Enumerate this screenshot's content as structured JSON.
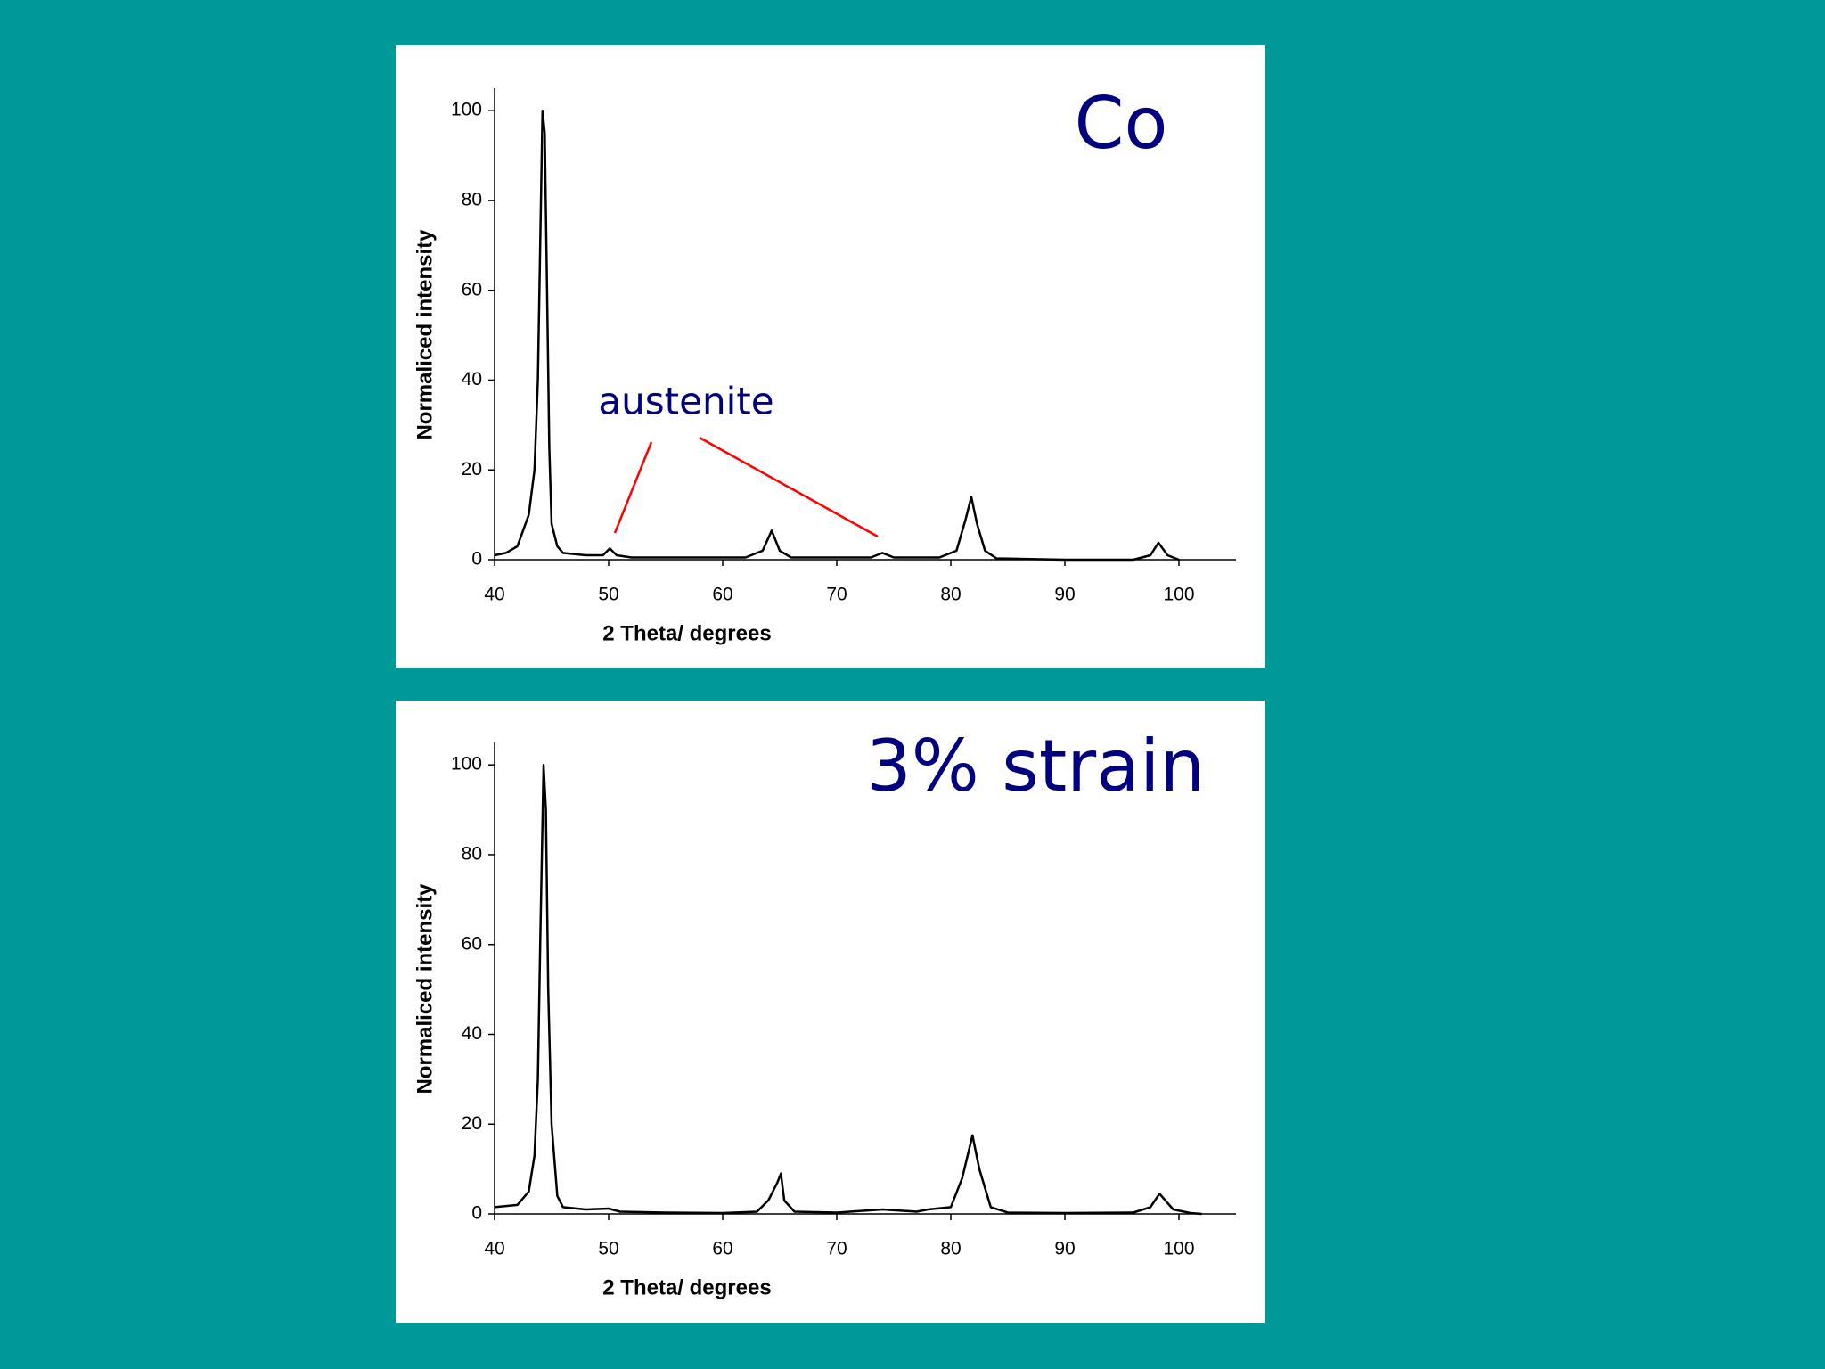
{
  "chart_data": [
    {
      "type": "line",
      "title": "Co",
      "annotation": "austenite",
      "xlabel": "2 Theta/ degrees",
      "ylabel": "Normaliced intensity",
      "xlim": [
        40,
        105
      ],
      "ylim": [
        0,
        105
      ],
      "xticks": [
        40,
        50,
        60,
        70,
        80,
        90,
        100
      ],
      "yticks": [
        0,
        20,
        40,
        60,
        80,
        100
      ],
      "grid": false,
      "color": "#000000",
      "x": [
        40,
        41,
        42,
        43,
        43.5,
        43.8,
        44,
        44.2,
        44.4,
        44.6,
        44.8,
        45,
        45.5,
        46,
        48,
        49.5,
        50.1,
        50.7,
        52,
        56,
        60,
        62,
        63.5,
        64.3,
        65,
        66,
        70,
        73,
        74,
        75,
        79,
        80.5,
        81.3,
        81.8,
        82.3,
        83,
        84,
        90,
        96,
        97.5,
        98.2,
        99,
        100
      ],
      "values": [
        1,
        1.5,
        3,
        10,
        20,
        40,
        70,
        100,
        95,
        60,
        25,
        8,
        3,
        1.5,
        1,
        1,
        2.5,
        1,
        0.5,
        0.5,
        0.5,
        0.5,
        2,
        6.5,
        2,
        0.5,
        0.5,
        0.5,
        1.5,
        0.5,
        0.5,
        2,
        9,
        14,
        8,
        2,
        0.3,
        0,
        0,
        1,
        3.8,
        1,
        0
      ]
    },
    {
      "type": "line",
      "title": "3% strain",
      "xlabel": "2 Theta/ degrees",
      "ylabel": "Normaliced intensity",
      "xlim": [
        40,
        105
      ],
      "ylim": [
        0,
        105
      ],
      "xticks": [
        40,
        50,
        60,
        70,
        80,
        90,
        100
      ],
      "yticks": [
        0,
        20,
        40,
        60,
        80,
        100
      ],
      "grid": false,
      "color": "#000000",
      "x": [
        40,
        42,
        43,
        43.5,
        43.8,
        44,
        44.3,
        44.5,
        44.7,
        45,
        45.5,
        46,
        48,
        50,
        51,
        55,
        60,
        63,
        64,
        64.8,
        65.1,
        65.4,
        66.3,
        70,
        74,
        77,
        78,
        80,
        81,
        81.9,
        82.5,
        83.5,
        85,
        90,
        96,
        97.5,
        98.3,
        99.5,
        101,
        102
      ],
      "values": [
        1.5,
        2,
        5,
        13,
        30,
        60,
        100,
        90,
        50,
        20,
        4,
        1.5,
        1,
        1.2,
        0.5,
        0.3,
        0.2,
        0.5,
        3,
        7,
        9,
        3,
        0.5,
        0.3,
        1,
        0.5,
        1,
        1.5,
        8,
        17.5,
        10,
        1.5,
        0.3,
        0.2,
        0.3,
        1.5,
        4.5,
        1,
        0.2,
        0
      ]
    }
  ]
}
